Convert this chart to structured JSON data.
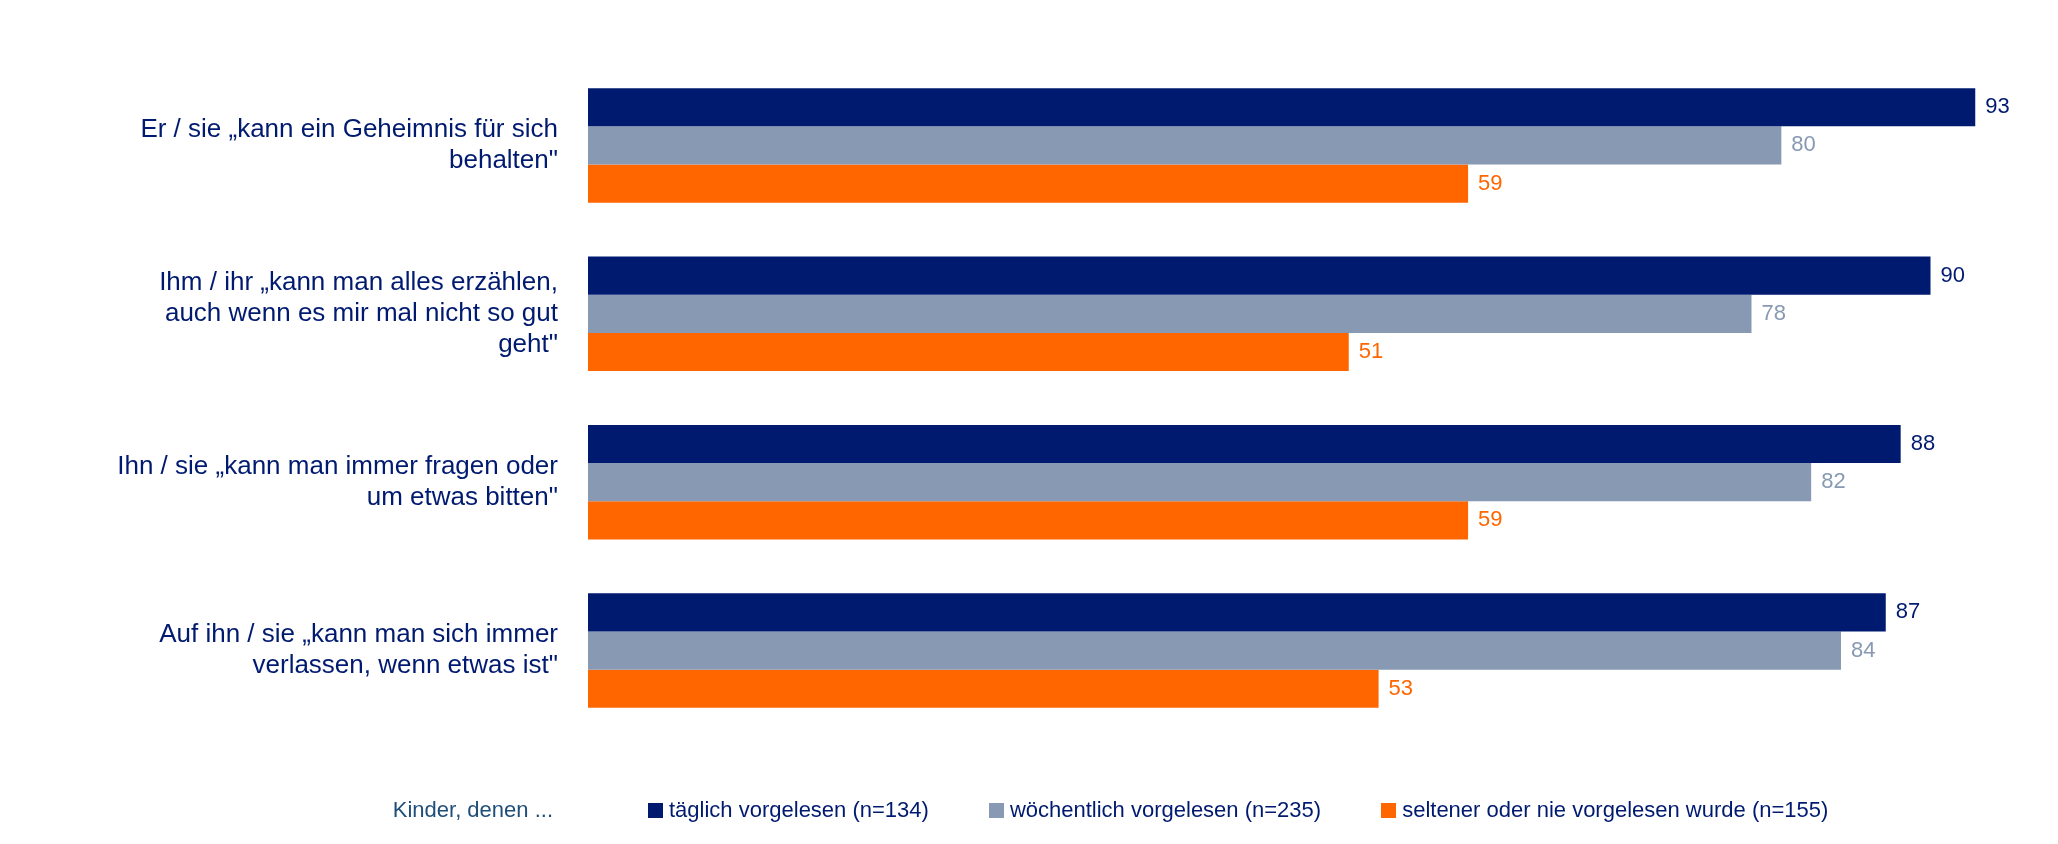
{
  "chart_data": {
    "type": "bar",
    "orientation": "horizontal",
    "categories": [
      "Er / sie „kann ein Geheimnis für sich behalten\"",
      "Ihm / ihr „kann man alles erzählen, auch wenn es mir mal nicht so gut geht\"",
      "Ihn / sie „kann man immer fragen oder um etwas bitten\"",
      "Auf ihn / sie „kann man sich immer verlassen, wenn etwas ist\""
    ],
    "series": [
      {
        "name": "täglich vorgelesen (n=134)",
        "color": "#001a70",
        "values": [
          93,
          90,
          88,
          87
        ]
      },
      {
        "name": "wöchentlich vorgelesen (n=235)",
        "color": "#8799b3",
        "values": [
          80,
          78,
          82,
          84
        ]
      },
      {
        "name": "seltener oder nie vorgelesen wurde (n=155)",
        "color": "#ff6600",
        "values": [
          59,
          51,
          59,
          53
        ]
      }
    ],
    "legend_title": "Kinder, denen ...",
    "legend": "bottom",
    "data_labels": true
  }
}
